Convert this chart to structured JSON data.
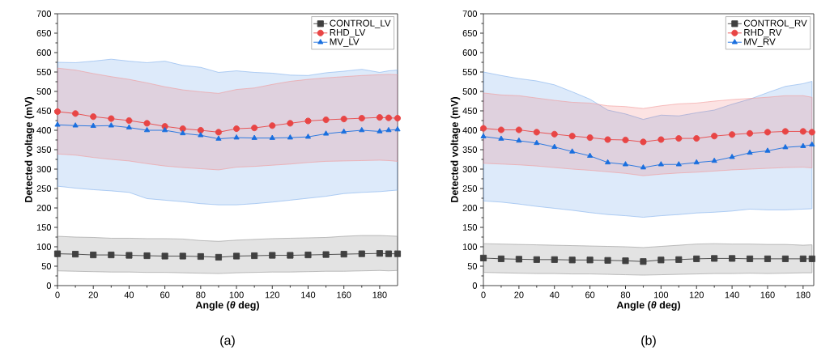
{
  "chart_data": [
    {
      "type": "line",
      "xlabel": "Angle (*θ* deg)",
      "ylabel": "Detected voltage (mV)",
      "annotations": [
        "(a)"
      ],
      "x": [
        0,
        10,
        20,
        30,
        40,
        50,
        60,
        70,
        80,
        90,
        100,
        110,
        120,
        130,
        140,
        150,
        160,
        170,
        180,
        185,
        190
      ],
      "xlim": [
        0,
        190
      ],
      "ylim": [
        0,
        700
      ],
      "xticks": [
        0,
        20,
        40,
        60,
        80,
        100,
        120,
        140,
        160,
        180
      ],
      "yticks": [
        0,
        50,
        100,
        150,
        200,
        250,
        300,
        350,
        400,
        450,
        500,
        550,
        600,
        650,
        700
      ],
      "grid": false,
      "legend": "top right",
      "series": [
        {
          "name": "CONTROL_LV",
          "color": "#404040",
          "marker": "square",
          "values": [
            82,
            81,
            79,
            79,
            78,
            77,
            76,
            76,
            75,
            73,
            76,
            77,
            78,
            78,
            79,
            80,
            81,
            82,
            83,
            82,
            82
          ],
          "lower": [
            38,
            37,
            36,
            35,
            35,
            34,
            34,
            33,
            32,
            31,
            33,
            34,
            35,
            35,
            36,
            37,
            37,
            38,
            39,
            38,
            39
          ],
          "upper": [
            127,
            125,
            124,
            122,
            122,
            121,
            121,
            120,
            116,
            114,
            117,
            119,
            121,
            122,
            123,
            124,
            127,
            129,
            129,
            128,
            127
          ]
        },
        {
          "name": "RHD_LV",
          "color": "#e84545",
          "marker": "circle",
          "values": [
            448,
            443,
            435,
            430,
            425,
            418,
            410,
            404,
            400,
            395,
            404,
            406,
            412,
            418,
            424,
            427,
            429,
            431,
            433,
            432,
            431
          ],
          "lower": [
            339,
            336,
            330,
            325,
            321,
            314,
            308,
            304,
            301,
            298,
            305,
            307,
            310,
            313,
            317,
            320,
            321,
            322,
            323,
            322,
            320
          ],
          "upper": [
            560,
            555,
            546,
            538,
            531,
            522,
            512,
            504,
            499,
            495,
            505,
            509,
            518,
            526,
            531,
            535,
            538,
            541,
            543,
            544,
            543
          ]
        },
        {
          "name": "MV_LV",
          "color": "#1a6fdf",
          "marker": "triangle",
          "values": [
            414,
            412,
            411,
            412,
            407,
            400,
            400,
            392,
            387,
            378,
            381,
            380,
            380,
            381,
            383,
            391,
            396,
            400,
            397,
            400,
            402
          ],
          "lower": [
            256,
            251,
            247,
            244,
            240,
            224,
            220,
            216,
            211,
            208,
            208,
            211,
            215,
            220,
            225,
            230,
            237,
            240,
            242,
            244,
            246
          ],
          "upper": [
            575,
            574,
            578,
            583,
            578,
            574,
            578,
            567,
            562,
            549,
            553,
            549,
            547,
            542,
            541,
            548,
            552,
            557,
            549,
            553,
            555
          ]
        }
      ]
    },
    {
      "type": "line",
      "xlabel": "Angle (*θ* deg)",
      "ylabel": "Detected voltage (mV)",
      "annotations": [
        "(b)"
      ],
      "x": [
        0,
        10,
        20,
        30,
        40,
        50,
        60,
        70,
        80,
        90,
        100,
        110,
        120,
        130,
        140,
        150,
        160,
        170,
        180,
        185
      ],
      "xlim": [
        0,
        186
      ],
      "ylim": [
        0,
        700
      ],
      "xticks": [
        0,
        20,
        40,
        60,
        80,
        100,
        120,
        140,
        160,
        180
      ],
      "yticks": [
        0,
        50,
        100,
        150,
        200,
        250,
        300,
        350,
        400,
        450,
        500,
        550,
        600,
        650,
        700
      ],
      "grid": false,
      "legend": "top right",
      "series": [
        {
          "name": "CONTROL_RV",
          "color": "#404040",
          "marker": "square",
          "values": [
            71,
            69,
            68,
            67,
            67,
            66,
            66,
            65,
            64,
            62,
            66,
            67,
            69,
            70,
            70,
            69,
            69,
            69,
            69,
            69
          ],
          "lower": [
            34,
            33,
            32,
            31,
            31,
            30,
            30,
            29,
            28,
            27,
            28,
            29,
            30,
            31,
            31,
            32,
            31,
            32,
            33,
            33
          ],
          "upper": [
            108,
            107,
            106,
            105,
            104,
            103,
            102,
            101,
            100,
            98,
            101,
            104,
            107,
            108,
            107,
            107,
            106,
            106,
            104,
            105
          ]
        },
        {
          "name": "RHD_RV",
          "color": "#e84545",
          "marker": "circle",
          "values": [
            405,
            401,
            401,
            395,
            390,
            385,
            381,
            376,
            375,
            370,
            376,
            379,
            379,
            385,
            389,
            392,
            395,
            397,
            397,
            395
          ],
          "lower": [
            315,
            313,
            311,
            308,
            304,
            300,
            297,
            293,
            289,
            283,
            287,
            290,
            292,
            295,
            298,
            300,
            302,
            304,
            305,
            303
          ],
          "upper": [
            496,
            491,
            489,
            483,
            477,
            472,
            470,
            463,
            461,
            456,
            463,
            468,
            470,
            475,
            479,
            482,
            485,
            489,
            489,
            485
          ]
        },
        {
          "name": "MV_RV",
          "color": "#1a6fdf",
          "marker": "triangle",
          "values": [
            384,
            378,
            373,
            367,
            357,
            345,
            334,
            317,
            312,
            304,
            312,
            312,
            317,
            321,
            331,
            342,
            347,
            356,
            359,
            363
          ],
          "lower": [
            218,
            215,
            210,
            204,
            199,
            194,
            188,
            183,
            180,
            176,
            180,
            183,
            187,
            189,
            192,
            197,
            195,
            195,
            197,
            198
          ],
          "upper": [
            550,
            541,
            533,
            527,
            517,
            499,
            480,
            452,
            442,
            428,
            439,
            437,
            445,
            452,
            467,
            480,
            497,
            513,
            520,
            526
          ]
        }
      ]
    }
  ]
}
